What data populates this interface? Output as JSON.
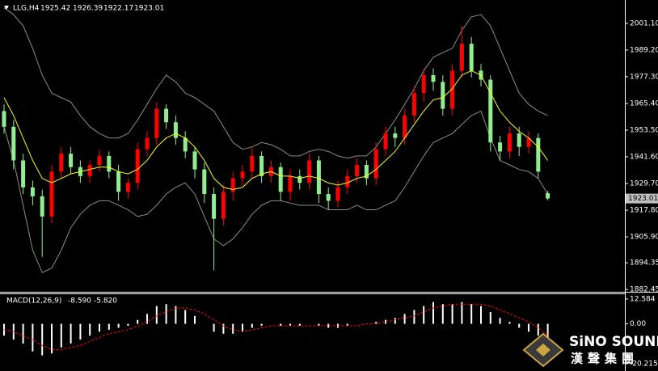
{
  "chart_data": [
    {
      "type": "candlestick",
      "symbol": "LLG,H4",
      "ohlc": [
        1925.42,
        1926.39,
        1922.17,
        1923.01
      ],
      "last_price": 1923.01,
      "ylim": [
        1881.8,
        2011.5
      ],
      "yticks": [
        {
          "value": 2001.1,
          "label": "2001.10"
        },
        {
          "value": 1989.2,
          "label": "1989.20"
        },
        {
          "value": 1977.3,
          "label": "1977.30"
        },
        {
          "value": 1965.4,
          "label": "1965.40"
        },
        {
          "value": 1953.5,
          "label": "1953.50"
        },
        {
          "value": 1941.6,
          "label": "1941.60"
        },
        {
          "value": 1929.7,
          "label": "1929.70"
        },
        {
          "value": 1917.8,
          "label": "1917.80"
        },
        {
          "value": 1905.9,
          "label": "1905.90"
        },
        1894.35,
        1882.45
      ],
      "up_color": "#ff0000",
      "down_color": "#90ee90",
      "band_color": "#8c8c8c",
      "ma_color": "#ffff00",
      "open": [
        1962,
        1955,
        1940,
        1928,
        1924,
        1915,
        1935,
        1943,
        1937,
        1933,
        1938,
        1942,
        1935,
        1926,
        1930,
        1945,
        1950,
        1963,
        1957,
        1950,
        1944,
        1936,
        1925,
        1914,
        1926,
        1932,
        1935,
        1942,
        1933,
        1937,
        1926,
        1933,
        1930,
        1940,
        1925,
        1922,
        1928,
        1933,
        1938,
        1932,
        1945,
        1952,
        1950,
        1960,
        1970,
        1978,
        1975,
        1963,
        1980,
        1992,
        1980,
        1976,
        1948,
        1944,
        1952,
        1946,
        1950,
        1925.42
      ],
      "high": [
        1965,
        1958,
        1943,
        1931,
        1927,
        1938,
        1946,
        1946,
        1940,
        1940,
        1945,
        1944,
        1938,
        1932,
        1948,
        1953,
        1966,
        1965,
        1960,
        1953,
        1946,
        1939,
        1928,
        1929,
        1935,
        1938,
        1946,
        1944,
        1940,
        1939,
        1936,
        1936,
        1943,
        1942,
        1928,
        1931,
        1936,
        1941,
        1940,
        1948,
        1955,
        1955,
        1963,
        1973,
        1981,
        1981,
        1978,
        1983,
        2000,
        1995,
        1983,
        1978,
        1951,
        1955,
        1955,
        1953,
        1952,
        1926.39
      ],
      "low": [
        1952,
        1936,
        1925,
        1920,
        1897,
        1912,
        1932,
        1934,
        1930,
        1930,
        1935,
        1932,
        1922,
        1923,
        1927,
        1942,
        1947,
        1954,
        1947,
        1941,
        1932,
        1921,
        1891,
        1911,
        1922,
        1929,
        1932,
        1930,
        1930,
        1922,
        1922,
        1927,
        1927,
        1921,
        1918,
        1919,
        1925,
        1930,
        1929,
        1929,
        1942,
        1946,
        1947,
        1957,
        1966,
        1971,
        1960,
        1960,
        1977,
        1977,
        1973,
        1944,
        1940,
        1941,
        1942,
        1943,
        1932,
        1922.17
      ],
      "close": [
        1955,
        1940,
        1928,
        1924,
        1915,
        1935,
        1943,
        1937,
        1933,
        1938,
        1942,
        1935,
        1926,
        1930,
        1945,
        1950,
        1963,
        1957,
        1950,
        1944,
        1936,
        1925,
        1914,
        1926,
        1932,
        1935,
        1942,
        1933,
        1937,
        1926,
        1933,
        1930,
        1940,
        1925,
        1922,
        1928,
        1933,
        1938,
        1932,
        1945,
        1952,
        1950,
        1960,
        1970,
        1978,
        1975,
        1963,
        1980,
        1992,
        1980,
        1976,
        1948,
        1944,
        1952,
        1946,
        1950,
        1935,
        1923.01
      ],
      "ma": [
        1968,
        1960,
        1950,
        1940,
        1932,
        1930,
        1932,
        1934,
        1935,
        1936,
        1937,
        1937,
        1935,
        1934,
        1936,
        1940,
        1946,
        1950,
        1952,
        1950,
        1946,
        1940,
        1932,
        1928,
        1927,
        1928,
        1932,
        1934,
        1935,
        1933,
        1933,
        1932,
        1933,
        1932,
        1930,
        1929,
        1930,
        1932,
        1933,
        1936,
        1940,
        1944,
        1950,
        1956,
        1962,
        1967,
        1968,
        1972,
        1978,
        1980,
        1978,
        1970,
        1962,
        1957,
        1953,
        1950,
        1946,
        1940
      ],
      "upper_band": [
        2008,
        2005,
        2000,
        1990,
        1978,
        1970,
        1968,
        1966,
        1960,
        1955,
        1952,
        1950,
        1950,
        1952,
        1958,
        1965,
        1972,
        1978,
        1975,
        1970,
        1968,
        1965,
        1962,
        1955,
        1948,
        1945,
        1946,
        1948,
        1947,
        1945,
        1942,
        1942,
        1944,
        1945,
        1944,
        1942,
        1941,
        1942,
        1942,
        1946,
        1952,
        1958,
        1965,
        1972,
        1980,
        1986,
        1988,
        1990,
        1998,
        2004,
        2005,
        2000,
        1990,
        1980,
        1970,
        1965,
        1962,
        1960
      ],
      "lower_band": [
        1955,
        1940,
        1920,
        1900,
        1890,
        1892,
        1900,
        1910,
        1916,
        1920,
        1922,
        1922,
        1920,
        1918,
        1915,
        1916,
        1920,
        1925,
        1928,
        1930,
        1925,
        1915,
        1905,
        1902,
        1905,
        1910,
        1916,
        1920,
        1922,
        1922,
        1921,
        1920,
        1920,
        1920,
        1918,
        1918,
        1918,
        1920,
        1918,
        1918,
        1920,
        1922,
        1928,
        1935,
        1942,
        1948,
        1950,
        1952,
        1956,
        1960,
        1962,
        1950,
        1940,
        1938,
        1936,
        1935,
        1932,
        1925
      ]
    },
    {
      "type": "macd",
      "label": "MACD(12,26,9)",
      "readout": [
        {
          "value": -8.59,
          "label": "-8.590"
        },
        {
          "value": -5.82,
          "label": "-5.820"
        }
      ],
      "ylim": [
        -23.5,
        15.0
      ],
      "yticks": [
        12.584,
        {
          "value": 0,
          "label": "0.00"
        },
        -20.215
      ],
      "histogram_color": "#ffffff",
      "signal_color": "#ff0000",
      "histogram": [
        -6,
        -8,
        -10,
        -14,
        -16,
        -15,
        -12,
        -10,
        -8,
        -6,
        -4,
        -3,
        -2,
        -1,
        2,
        5,
        9,
        10,
        9,
        7,
        4,
        0,
        -4,
        -5,
        -5,
        -4,
        -2,
        -1,
        0,
        -1,
        -1,
        -1,
        0,
        -1,
        -2,
        -2,
        -1,
        0,
        0,
        1,
        2,
        3,
        5,
        7,
        9,
        11,
        10,
        10,
        11,
        10,
        9,
        6,
        3,
        1,
        -2,
        -4,
        -6,
        -8.59
      ],
      "signal": [
        -3,
        -4,
        -6,
        -8,
        -11,
        -13,
        -13,
        -12,
        -11,
        -9,
        -7,
        -5,
        -4,
        -3,
        -1,
        1,
        4,
        6,
        8,
        8,
        7,
        5,
        2,
        -1,
        -3,
        -4,
        -3,
        -2,
        -1,
        -1,
        -1,
        -1,
        -1,
        -1,
        -1,
        -1,
        -1,
        -1,
        0,
        0,
        1,
        2,
        3,
        4,
        6,
        8,
        9,
        10,
        10,
        10,
        10,
        9,
        7,
        5,
        3,
        1,
        -2,
        -5.82
      ]
    }
  ],
  "logo": {
    "name": "SiNO SOUND",
    "chinese": "漢聲集團"
  }
}
